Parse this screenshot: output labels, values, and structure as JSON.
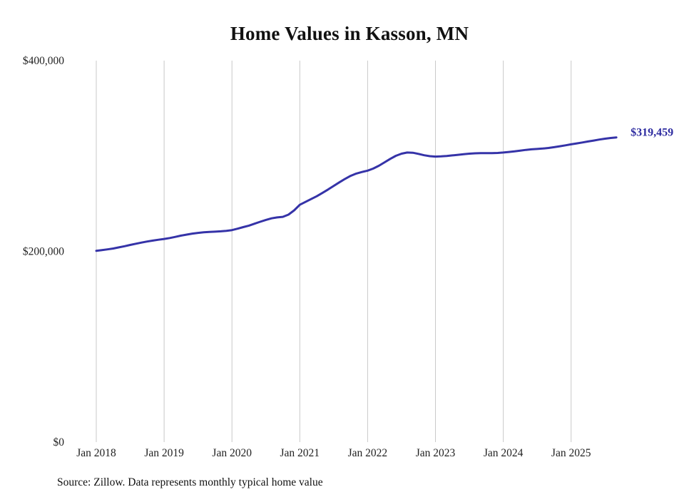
{
  "chart": {
    "title": "Home Values in Kasson, MN",
    "end_label": "$319,459",
    "source_note": "Source: Zillow. Data represents monthly typical home value"
  },
  "colors": {
    "line": "#3533a8",
    "end_label": "#2d2ba0",
    "grid": "#c9c9c9",
    "tick_text": "#222222"
  },
  "chart_data": {
    "type": "line",
    "title": "Home Values in Kasson, MN",
    "x_start": "2018-01",
    "x_end": "2025-09",
    "x_frequency": "monthly",
    "x_tick_labels": [
      "Jan 2018",
      "Jan 2019",
      "Jan 2020",
      "Jan 2021",
      "Jan 2022",
      "Jan 2023",
      "Jan 2024",
      "Jan 2025"
    ],
    "y_tick_labels": [
      "$0",
      "$200,000",
      "$400,000"
    ],
    "y_tick_values": [
      0,
      200000,
      400000
    ],
    "ylim": [
      0,
      400000
    ],
    "grid": "vertical-only",
    "legend": "none",
    "end_annotation": "$319,459",
    "series": [
      {
        "name": "Typical home value",
        "values": [
          200500,
          201300,
          202100,
          203000,
          204200,
          205400,
          206700,
          208000,
          209200,
          210300,
          211300,
          212200,
          213000,
          214000,
          215200,
          216500,
          217600,
          218600,
          219400,
          220000,
          220300,
          220600,
          221000,
          221500,
          222300,
          223800,
          225400,
          227000,
          229000,
          231000,
          233000,
          234600,
          235600,
          236200,
          238500,
          243000,
          248800,
          251800,
          254800,
          257800,
          261200,
          264800,
          268600,
          272400,
          276000,
          279200,
          281600,
          283200,
          284600,
          286800,
          289800,
          293400,
          297000,
          300200,
          302400,
          303600,
          303400,
          302200,
          300800,
          299800,
          299400,
          299600,
          300000,
          300600,
          301200,
          301800,
          302400,
          302800,
          303000,
          303000,
          303000,
          303200,
          303600,
          304200,
          304800,
          305600,
          306400,
          307000,
          307400,
          307800,
          308400,
          309200,
          310200,
          311200,
          312200,
          313200,
          314200,
          315200,
          316200,
          317200,
          318100,
          318900,
          319459
        ]
      }
    ]
  }
}
